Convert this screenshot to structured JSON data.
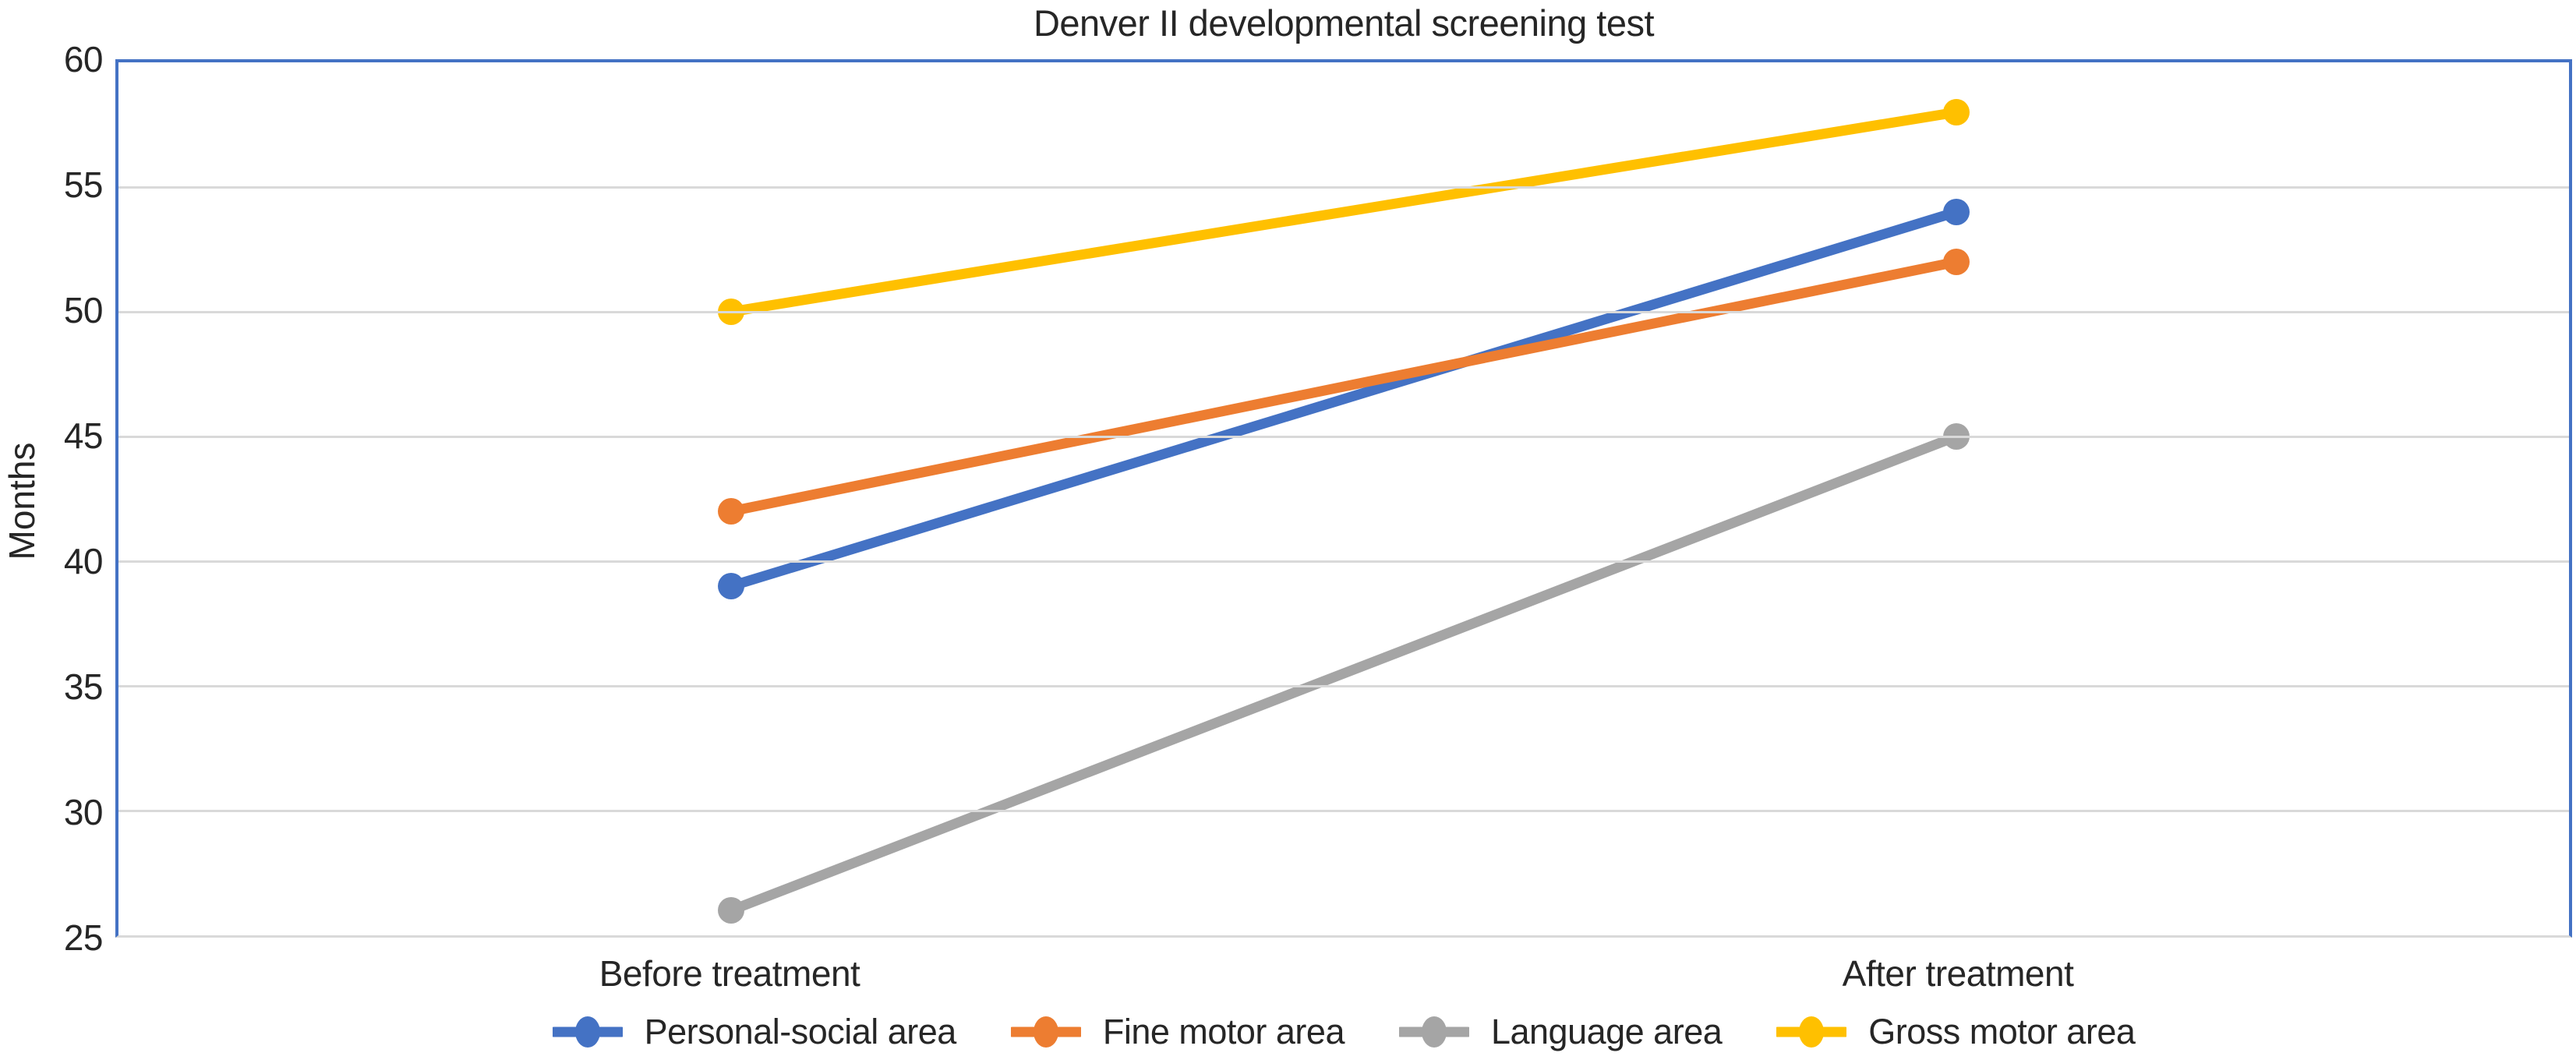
{
  "chart_data": {
    "type": "line",
    "title": "Denver II developmental screening test",
    "ylabel": "Months",
    "xlabel": "",
    "categories": [
      "Before treatment",
      "After treatment"
    ],
    "series": [
      {
        "name": "Personal-social area",
        "color": "#4472C4",
        "values": [
          39,
          54
        ]
      },
      {
        "name": "Fine motor area",
        "color": "#ED7D31",
        "values": [
          42,
          52
        ]
      },
      {
        "name": "Language area",
        "color": "#A5A5A5",
        "values": [
          26,
          45
        ]
      },
      {
        "name": "Gross motor area",
        "color": "#FFC000",
        "values": [
          50,
          58
        ]
      }
    ],
    "ylim": [
      25,
      60
    ],
    "yticks": [
      60,
      55,
      50,
      45,
      40,
      35,
      30,
      25
    ],
    "grid": true,
    "legend_position": "bottom",
    "marker": "circle"
  },
  "styles": {
    "plot_border_color": "#4472C4",
    "gridline_color": "#D9D9D9",
    "bottom_axis_color": "#D9D9D9",
    "text_color": "#262626",
    "background": "#ffffff"
  }
}
